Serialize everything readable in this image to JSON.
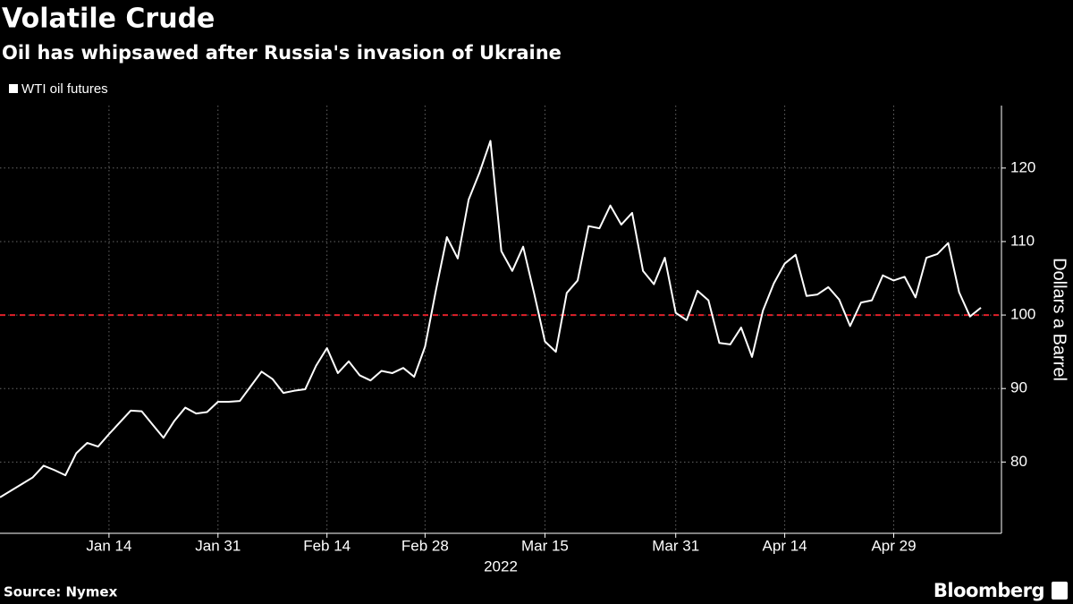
{
  "chart_data": {
    "type": "line",
    "title": "Volatile Crude",
    "subtitle": "Oil has whipsawed after Russia's invasion of Ukraine",
    "x_label": "2022",
    "y_label": "Dollars a Barrel",
    "source": "Source: Nymex",
    "brand": "Bloomberg",
    "categories": [
      "Dec 31",
      "Jan 3",
      "Jan 4",
      "Jan 5",
      "Jan 6",
      "Jan 7",
      "Jan 10",
      "Jan 11",
      "Jan 12",
      "Jan 13",
      "Jan 14",
      "Jan 18",
      "Jan 19",
      "Jan 20",
      "Jan 21",
      "Jan 24",
      "Jan 25",
      "Jan 26",
      "Jan 27",
      "Jan 28",
      "Jan 31",
      "Feb 1",
      "Feb 2",
      "Feb 3",
      "Feb 4",
      "Feb 7",
      "Feb 8",
      "Feb 9",
      "Feb 10",
      "Feb 11",
      "Feb 14",
      "Feb 15",
      "Feb 16",
      "Feb 17",
      "Feb 18",
      "Feb 22",
      "Feb 23",
      "Feb 24",
      "Feb 25",
      "Feb 28",
      "Mar 1",
      "Mar 2",
      "Mar 3",
      "Mar 4",
      "Mar 7",
      "Mar 8",
      "Mar 9",
      "Mar 10",
      "Mar 11",
      "Mar 14",
      "Mar 15",
      "Mar 16",
      "Mar 17",
      "Mar 18",
      "Mar 21",
      "Mar 22",
      "Mar 23",
      "Mar 24",
      "Mar 25",
      "Mar 28",
      "Mar 29",
      "Mar 30",
      "Mar 31",
      "Apr 1",
      "Apr 4",
      "Apr 5",
      "Apr 6",
      "Apr 7",
      "Apr 8",
      "Apr 11",
      "Apr 12",
      "Apr 13",
      "Apr 14",
      "Apr 18",
      "Apr 19",
      "Apr 20",
      "Apr 21",
      "Apr 22",
      "Apr 25",
      "Apr 26",
      "Apr 27",
      "Apr 28",
      "Apr 29",
      "May 2",
      "May 3",
      "May 4",
      "May 5",
      "May 6",
      "May 9",
      "May 10",
      "May 11"
    ],
    "series": [
      {
        "name": "WTI oil futures",
        "color": "#ffffff",
        "values": [
          75.2,
          76.1,
          77.0,
          77.9,
          79.5,
          78.9,
          78.2,
          81.2,
          82.6,
          82.1,
          83.8,
          85.4,
          87.0,
          86.9,
          85.1,
          83.3,
          85.6,
          87.4,
          86.6,
          86.8,
          88.2,
          88.2,
          88.3,
          90.3,
          92.3,
          91.3,
          89.4,
          89.7,
          89.9,
          93.1,
          95.5,
          92.1,
          93.7,
          91.8,
          91.1,
          92.4,
          92.1,
          92.8,
          91.6,
          95.7,
          103.4,
          110.6,
          107.7,
          115.7,
          119.4,
          123.7,
          108.7,
          106.0,
          109.3,
          103.0,
          96.4,
          95.0,
          103.0,
          104.7,
          112.1,
          111.8,
          114.9,
          112.3,
          113.9,
          106.0,
          104.2,
          107.8,
          100.3,
          99.3,
          103.3,
          102.0,
          96.2,
          96.0,
          98.3,
          94.3,
          100.6,
          104.3,
          107.0,
          108.2,
          102.6,
          102.8,
          103.8,
          102.1,
          98.5,
          101.7,
          102.0,
          105.4,
          104.7,
          105.2,
          102.4,
          107.8,
          108.3,
          109.8,
          103.1,
          99.8,
          101.0
        ]
      }
    ],
    "ylim": [
      70.3,
      128.5
    ],
    "yticks": [
      80,
      90,
      100,
      110,
      120
    ],
    "xticks": [
      "Jan 14",
      "Jan 31",
      "Feb 14",
      "Feb 28",
      "Mar 15",
      "Mar 31",
      "Apr 14",
      "Apr 29"
    ],
    "reference_line": {
      "value": 100,
      "color": "#e0202a"
    },
    "grid": true
  }
}
